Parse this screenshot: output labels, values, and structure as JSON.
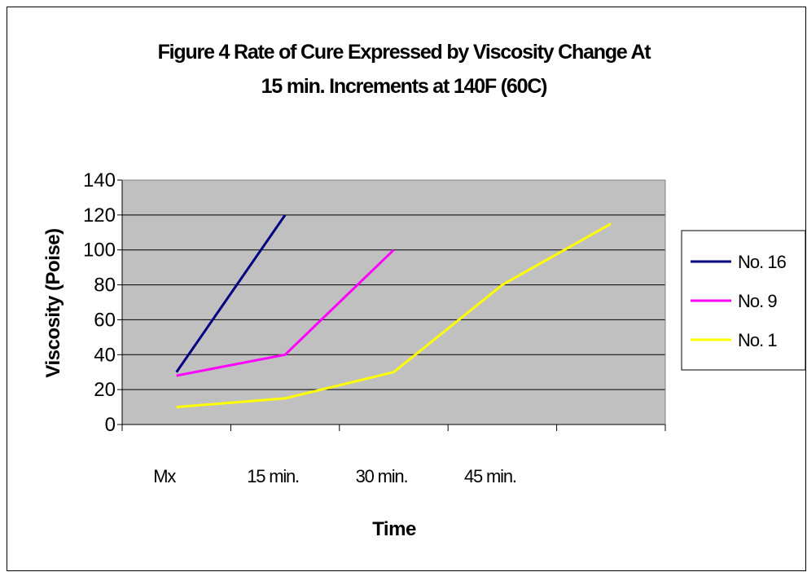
{
  "chart_data": {
    "type": "line",
    "title_lines": [
      "Figure 4 Rate of Cure Expressed by Viscosity Change At",
      "15 min. Increments at 140F (60C)"
    ],
    "xlabel": "Time",
    "ylabel": "Viscosity (Poise)",
    "categories": [
      "Mx",
      "15 min.",
      "30 min.",
      "45 min.",
      ""
    ],
    "ylim": [
      0,
      140
    ],
    "yticks": [
      0,
      20,
      40,
      60,
      80,
      100,
      120,
      140
    ],
    "grid": true,
    "legend_position": "right",
    "plot_background": "#c0c0c0",
    "series": [
      {
        "name": "No. 16",
        "color": "#000080",
        "values": [
          30,
          120,
          null,
          null,
          null
        ]
      },
      {
        "name": "No. 9",
        "color": "#ff00ff",
        "values": [
          28,
          40,
          100,
          null,
          null
        ]
      },
      {
        "name": "No. 1",
        "color": "#ffff00",
        "values": [
          10,
          15,
          30,
          80,
          115
        ]
      }
    ]
  }
}
